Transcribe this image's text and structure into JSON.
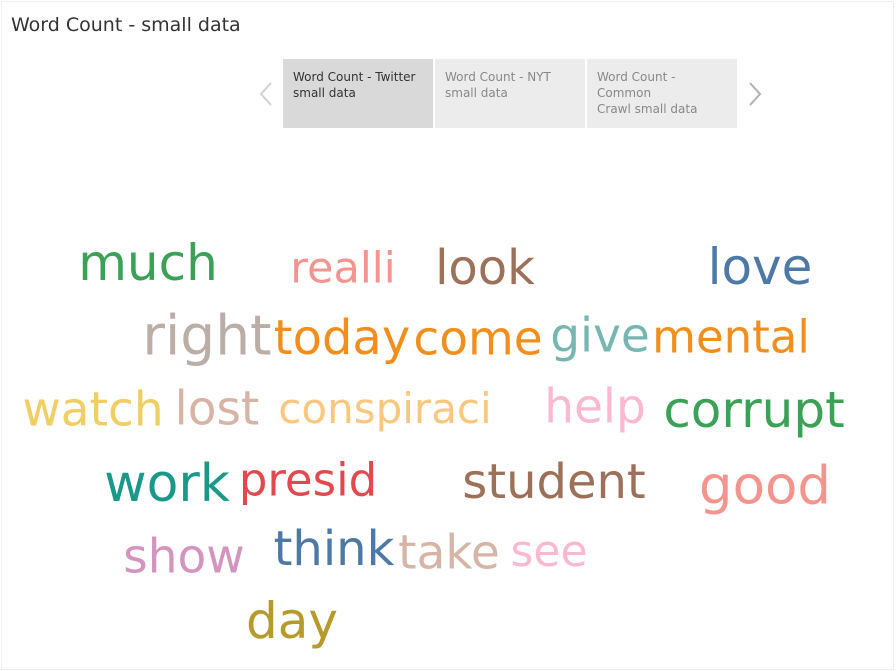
{
  "page": {
    "title": "Word Count - small data"
  },
  "tabs": [
    {
      "line1": "Word Count - Twitter",
      "line2": "small data",
      "active": true
    },
    {
      "line1": "Word Count - NYT",
      "line2": "small data",
      "active": false
    },
    {
      "line1": "Word Count - Common",
      "line2": "Crawl small data",
      "active": false
    }
  ],
  "nav": {
    "prev_icon": "chevron-left-icon",
    "next_icon": "chevron-right-icon"
  },
  "chart_data": {
    "type": "word-cloud",
    "title": "",
    "words": [
      {
        "text": "much",
        "size": 50,
        "color": "#3aa157"
      },
      {
        "text": "realli",
        "size": 43,
        "color": "#f4948e"
      },
      {
        "text": "look",
        "size": 48,
        "color": "#9c7059"
      },
      {
        "text": "love",
        "size": 50,
        "color": "#4c79a6"
      },
      {
        "text": "right",
        "size": 55,
        "color": "#bbaea6"
      },
      {
        "text": "today",
        "size": 48,
        "color": "#f28e1c"
      },
      {
        "text": "come",
        "size": 47,
        "color": "#f28e1c"
      },
      {
        "text": "give",
        "size": 47,
        "color": "#76b7b2"
      },
      {
        "text": "mental",
        "size": 45,
        "color": "#f28e1c"
      },
      {
        "text": "watch",
        "size": 47,
        "color": "#f1ce63"
      },
      {
        "text": "lost",
        "size": 47,
        "color": "#d7b5a6"
      },
      {
        "text": "conspiraci",
        "size": 42,
        "color": "#f9c77e"
      },
      {
        "text": "help",
        "size": 47,
        "color": "#fbb8d0"
      },
      {
        "text": "corrupt",
        "size": 50,
        "color": "#3aa157"
      },
      {
        "text": "work",
        "size": 52,
        "color": "#1a988a"
      },
      {
        "text": "presid",
        "size": 45,
        "color": "#e3484f"
      },
      {
        "text": "student",
        "size": 48,
        "color": "#9c7059"
      },
      {
        "text": "good",
        "size": 53,
        "color": "#f4948e"
      },
      {
        "text": "show",
        "size": 47,
        "color": "#d494c0"
      },
      {
        "text": "think",
        "size": 48,
        "color": "#4c79a6"
      },
      {
        "text": "take",
        "size": 47,
        "color": "#d7b5a6"
      },
      {
        "text": "see",
        "size": 44,
        "color": "#fbb8d0"
      },
      {
        "text": "day",
        "size": 50,
        "color": "#b69a2b"
      }
    ]
  }
}
